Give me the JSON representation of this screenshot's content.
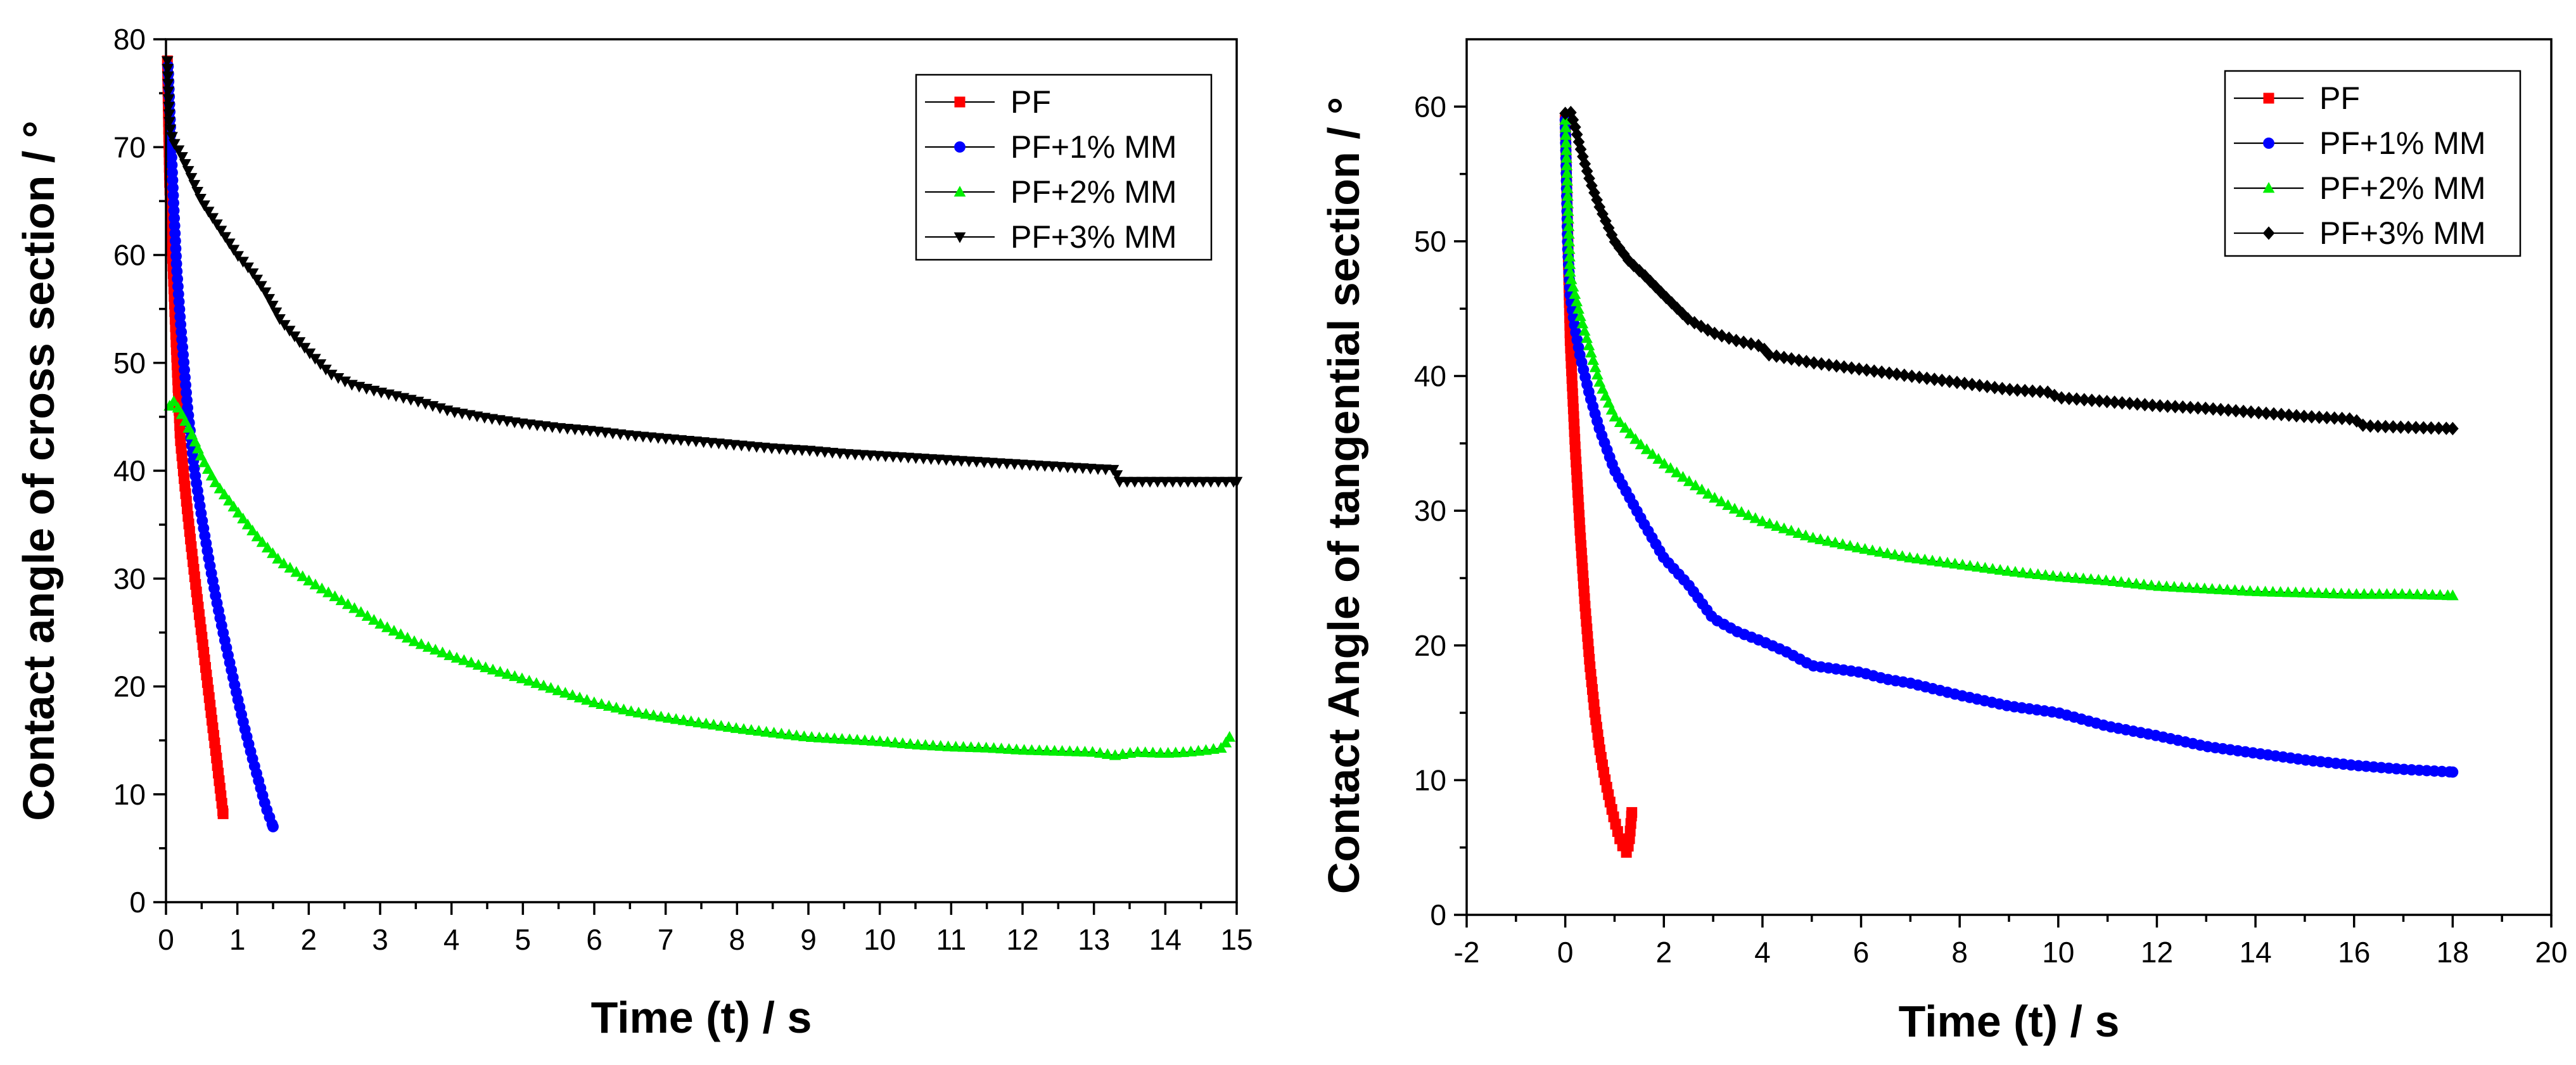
{
  "colors": {
    "PF": "#ff0000",
    "PF+1% MM": "#0000ff",
    "PF+2% MM": "#00ee00",
    "PF+3% MM": "#000000"
  },
  "chart_data": [
    {
      "type": "scatter",
      "title": "",
      "xlabel": "Time (t) / s",
      "ylabel": "Contact angle of cross section / °",
      "xlim": [
        0,
        15
      ],
      "ylim": [
        0,
        80
      ],
      "xticks": [
        "0",
        "1",
        "2",
        "3",
        "4",
        "5",
        "6",
        "7",
        "8",
        "9",
        "10",
        "11",
        "12",
        "13",
        "14",
        "15"
      ],
      "yticks": [
        "0",
        "10",
        "20",
        "30",
        "40",
        "50",
        "60",
        "70",
        "80"
      ],
      "legend_position": "top-right",
      "series": [
        {
          "name": "PF",
          "marker": "square",
          "x": [
            0.02,
            0.05,
            0.1,
            0.15,
            0.2,
            0.25,
            0.3,
            0.35,
            0.4,
            0.45,
            0.5,
            0.55,
            0.6,
            0.65,
            0.7,
            0.75,
            0.8
          ],
          "y": [
            78,
            66.8,
            58.5,
            50.5,
            43,
            39.5,
            36.3,
            33.2,
            30.3,
            27.5,
            24.8,
            22,
            19.3,
            16.5,
            13.8,
            11,
            8.2
          ]
        },
        {
          "name": "PF+1% MM",
          "marker": "circle",
          "x": [
            0.03,
            0.07,
            0.11,
            0.15,
            0.2,
            0.25,
            0.3,
            0.4,
            0.5,
            0.6,
            0.7,
            0.8,
            0.9,
            1.0,
            1.1,
            1.2,
            1.3,
            1.4,
            1.5
          ],
          "y": [
            77.5,
            70.5,
            64.3,
            58.8,
            54,
            50,
            46,
            40,
            35.7,
            31.8,
            28.2,
            25,
            22,
            19,
            16.2,
            13.6,
            11.2,
            8.8,
            7
          ]
        },
        {
          "name": "PF+2% MM",
          "marker": "triangle-up",
          "x": [
            0.05,
            0.1,
            0.2,
            0.3,
            0.4,
            0.5,
            0.7,
            1.0,
            1.3,
            1.6,
            2.0,
            2.5,
            3.0,
            3.5,
            4.0,
            4.5,
            5.0,
            5.5,
            6.0,
            6.5,
            7.0,
            7.5,
            8.0,
            8.5,
            9.0,
            9.5,
            10.0,
            10.5,
            11.0,
            11.5,
            12.0,
            12.5,
            13.0,
            13.3,
            13.6,
            14.0,
            14.3,
            14.6,
            14.8,
            14.9
          ],
          "y": [
            46,
            46.5,
            45.5,
            44.2,
            42.8,
            41.2,
            38.8,
            36.2,
            33.7,
            31.6,
            29.8,
            27.8,
            25.8,
            24.1,
            22.8,
            21.7,
            20.7,
            19.6,
            18.5,
            17.7,
            17.1,
            16.6,
            16.1,
            15.7,
            15.3,
            15.1,
            14.9,
            14.6,
            14.4,
            14.3,
            14.1,
            14.0,
            13.9,
            13.6,
            13.9,
            13.8,
            13.9,
            14.1,
            14.3,
            15.3
          ]
        },
        {
          "name": "PF+3% MM",
          "marker": "triangle-down",
          "x": [
            0.02,
            0.05,
            0.1,
            0.2,
            0.3,
            0.4,
            0.5,
            0.6,
            0.8,
            1.0,
            1.2,
            1.4,
            1.6,
            1.8,
            2.0,
            2.3,
            2.6,
            3.0,
            3.5,
            4.0,
            4.5,
            5.0,
            5.5,
            6.0,
            6.5,
            7.0,
            7.5,
            8.0,
            8.5,
            9.0,
            9.5,
            10.0,
            10.5,
            11.0,
            11.5,
            12.0,
            12.5,
            13.0,
            13.3,
            13.35,
            13.6,
            14.0,
            14.5,
            15.0
          ],
          "y": [
            78,
            72,
            70.5,
            69.5,
            68,
            66.5,
            65,
            64,
            62,
            60,
            58.5,
            56.5,
            54,
            52.5,
            51,
            49,
            48,
            47.3,
            46.5,
            45.5,
            44.9,
            44.4,
            44,
            43.7,
            43.3,
            43,
            42.7,
            42.4,
            42.1,
            41.9,
            41.6,
            41.4,
            41.2,
            41,
            40.8,
            40.6,
            40.4,
            40.2,
            40.1,
            39,
            39,
            39,
            39,
            39
          ]
        }
      ]
    },
    {
      "type": "scatter",
      "title": "",
      "xlabel": "Time (t) / s",
      "ylabel": "Contact Angle of tangential section / °",
      "xlim": [
        -2,
        20
      ],
      "ylim": [
        0,
        65
      ],
      "xticks": [
        "-2",
        "0",
        "2",
        "4",
        "6",
        "8",
        "10",
        "12",
        "14",
        "16",
        "18",
        "20"
      ],
      "yticks": [
        "0",
        "10",
        "20",
        "30",
        "40",
        "50",
        "60"
      ],
      "legend_position": "top-right",
      "series": [
        {
          "name": "PF",
          "marker": "square",
          "x": [
            0.0,
            0.1,
            0.2,
            0.3,
            0.4,
            0.5,
            0.6,
            0.7,
            0.8,
            0.9,
            1.0,
            1.1,
            1.2,
            1.25,
            1.3,
            1.35
          ],
          "y": [
            59,
            42.5,
            34.8,
            28.5,
            23,
            18.5,
            15,
            12.3,
            10.2,
            8.5,
            7,
            5.7,
            4.8,
            4.6,
            5.5,
            7.6
          ]
        },
        {
          "name": "PF+1% MM",
          "marker": "circle",
          "x": [
            0.0,
            0.05,
            0.1,
            0.2,
            0.3,
            0.5,
            0.7,
            1.0,
            1.3,
            1.6,
            2.0,
            2.5,
            3.0,
            3.5,
            4.0,
            4.5,
            5.0,
            6.0,
            6.5,
            7.0,
            8.0,
            9.0,
            10.0,
            11.0,
            12.0,
            13.0,
            14.0,
            15.0,
            16.0,
            17.0,
            18.0
          ],
          "y": [
            59,
            49.5,
            46,
            43.5,
            41.5,
            38.5,
            36,
            33,
            31,
            29,
            26.5,
            24.5,
            22,
            21,
            20.3,
            19.5,
            18.5,
            18,
            17.5,
            17.2,
            16.3,
            15.5,
            15,
            14,
            13.3,
            12.5,
            12,
            11.5,
            11.1,
            10.8,
            10.6
          ]
        },
        {
          "name": "PF+2% MM",
          "marker": "triangle-up",
          "x": [
            0.0,
            0.1,
            0.2,
            0.3,
            0.5,
            0.7,
            1.0,
            1.5,
            2.0,
            2.5,
            3.0,
            3.5,
            4.0,
            5.0,
            6.0,
            7.0,
            8.0,
            9.0,
            10.0,
            11.0,
            12.0,
            13.0,
            14.0,
            15.0,
            16.0,
            17.0,
            18.0
          ],
          "y": [
            59,
            47.5,
            46,
            44.5,
            42,
            39.5,
            37,
            35,
            33.5,
            32.2,
            31,
            30,
            29.2,
            28,
            27.2,
            26.5,
            26,
            25.5,
            25.1,
            24.8,
            24.4,
            24.2,
            24,
            23.9,
            23.8,
            23.8,
            23.7
          ]
        },
        {
          "name": "PF+3% MM",
          "marker": "diamond",
          "x": [
            0.0,
            0.1,
            0.2,
            0.3,
            0.5,
            0.7,
            1.0,
            1.3,
            1.6,
            2.0,
            2.5,
            3.0,
            3.5,
            4.0,
            4.1,
            5.0,
            6.0,
            7.0,
            8.0,
            9.0,
            9.8,
            10.0,
            11.0,
            12.0,
            13.0,
            14.0,
            15.0,
            16.0,
            16.2,
            17.0,
            18.0
          ],
          "y": [
            59.5,
            59.7,
            58.5,
            57,
            54.5,
            52.5,
            50,
            48.5,
            47.5,
            46,
            44.2,
            43.2,
            42.6,
            42.2,
            41.6,
            41,
            40.5,
            40,
            39.5,
            39,
            38.8,
            38.4,
            38.1,
            37.8,
            37.6,
            37.3,
            37,
            36.8,
            36.3,
            36.2,
            36.1
          ]
        }
      ]
    }
  ]
}
